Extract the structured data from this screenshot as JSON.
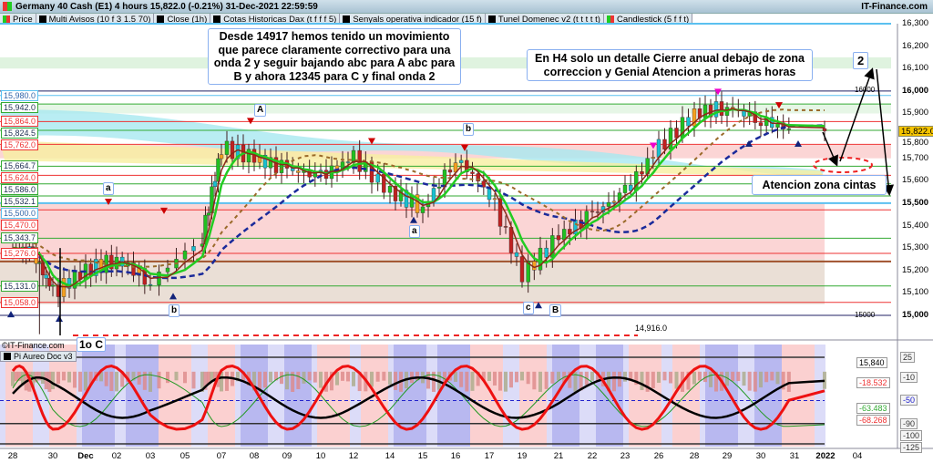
{
  "window": {
    "title": "Germany 40 Cash (E1) 4 hours 15,822.0 (-0.21%) 31-Dec-2021 22:59:59",
    "brand": "IT-Finance.com"
  },
  "legend": [
    {
      "label": "Price"
    },
    {
      "label": "Multi Avisos (10 f 3 1.5 70)"
    },
    {
      "label": "Close (1h)"
    },
    {
      "label": "Cotas Historicas Dax (t f f f 5)"
    },
    {
      "label": "Senyals operativa indicador (15 f)"
    },
    {
      "label": "Tunel Domenec v2 (t t t t t)"
    },
    {
      "label": "Candlestick (5 f f t)"
    }
  ],
  "annotations": {
    "box1": "Desde 14917 hemos tenido un movimiento que parece claramente correctivo para una onda 2 y seguir bajando abc para A abc para B y ahora 12345 para C y final onda 2",
    "box2": "En H4 solo un detalle Cierre anual debajo de zona correccion y Genial Atencion a primeras horas",
    "box3": "Atencion zona cintas",
    "waves": [
      "A",
      "a",
      "b",
      "b",
      "a",
      "c",
      "B",
      "2",
      "1o C"
    ],
    "low_label": "14,916.0",
    "level_16000": "16000",
    "level_15000": "15000",
    "copyright": "©IT-Finance.com"
  },
  "levels": [
    {
      "value": "15,980.0",
      "color": "#5bc0f0"
    },
    {
      "value": "15,942.0",
      "color": "#3a3"
    },
    {
      "value": "15,864.0",
      "color": "#e33"
    },
    {
      "value": "15,824.5",
      "color": "#3a3"
    },
    {
      "value": "15,762.0",
      "color": "#e33"
    },
    {
      "value": "15,664.7",
      "color": "#3a3"
    },
    {
      "value": "15,624.0",
      "color": "#e33"
    },
    {
      "value": "15,586.0",
      "color": "#3a3"
    },
    {
      "value": "15,532.1",
      "color": "#3a3"
    },
    {
      "value": "15,500.0",
      "color": "#5bc0f0"
    },
    {
      "value": "15,470.0",
      "color": "#e33"
    },
    {
      "value": "15,343.7",
      "color": "#3a3"
    },
    {
      "value": "15,276.0",
      "color": "#e33"
    },
    {
      "value": "15,131.0",
      "color": "#3a3"
    },
    {
      "value": "15,058.0",
      "color": "#e33"
    }
  ],
  "price_axis": {
    "ticks": [
      "16,300",
      "16,200",
      "16,100",
      "16,000",
      "15,900",
      "15,800",
      "15,700",
      "15,600",
      "15,500",
      "15,400",
      "15,300",
      "15,200",
      "15,100",
      "15,000"
    ],
    "current": "15,822.0",
    "current_color": "#f5c400"
  },
  "lower_panel": {
    "title": "Pi Aureo Doc v3",
    "ticks": [
      "25",
      "-10",
      "-50",
      "-90",
      "-100",
      "-125"
    ],
    "values": [
      {
        "v": "15,840",
        "c": "#000"
      },
      {
        "v": "-18.532",
        "c": "#e33"
      },
      {
        "v": "-63.483",
        "c": "#3a3"
      },
      {
        "v": "-68.268",
        "c": "#e33"
      }
    ]
  },
  "x_axis": {
    "labels": [
      "28",
      "30",
      "Dec",
      "02",
      "03",
      "05",
      "07",
      "08",
      "09",
      "10",
      "12",
      "14",
      "15",
      "16",
      "17",
      "19",
      "21",
      "22",
      "23",
      "26",
      "28",
      "29",
      "30",
      "31",
      "2022",
      "04"
    ]
  },
  "chart_data": {
    "type": "candlestick",
    "title": "Germany 40 Cash (E1) 4 hours",
    "ylim": [
      15000,
      16300
    ],
    "x": [
      "26-Nov",
      "29-Nov",
      "30-Nov",
      "01-Dec",
      "02-Dec",
      "03-Dec",
      "06-Dec",
      "07-Dec",
      "08-Dec",
      "09-Dec",
      "10-Dec",
      "13-Dec",
      "14-Dec",
      "15-Dec",
      "16-Dec",
      "17-Dec",
      "20-Dec",
      "21-Dec",
      "22-Dec",
      "23-Dec",
      "27-Dec",
      "28-Dec",
      "29-Dec",
      "30-Dec",
      "31-Dec"
    ],
    "close": [
      15300,
      15280,
      15100,
      15200,
      15250,
      15150,
      15350,
      15750,
      15700,
      15650,
      15620,
      15700,
      15550,
      15480,
      15700,
      15550,
      15180,
      15350,
      15450,
      15550,
      15750,
      15900,
      15930,
      15870,
      15822
    ],
    "swing_lows": {
      "29-Nov": 14916,
      "20-Dec": 15060
    },
    "swing_highs": {
      "07-Dec": 15870,
      "16-Dec": 15800,
      "29-Dec": 15960
    }
  }
}
